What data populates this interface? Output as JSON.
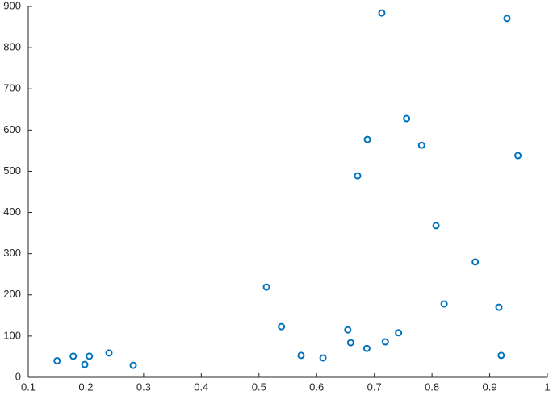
{
  "chart_data": {
    "type": "scatter",
    "x": [
      0.15,
      0.178,
      0.198,
      0.206,
      0.24,
      0.282,
      0.513,
      0.539,
      0.573,
      0.611,
      0.654,
      0.659,
      0.687,
      0.671,
      0.688,
      0.713,
      0.719,
      0.742,
      0.756,
      0.782,
      0.807,
      0.821,
      0.875,
      0.916,
      0.92,
      0.93,
      0.949
    ],
    "values": [
      40,
      51,
      31,
      51,
      59,
      29,
      219,
      123,
      53,
      47,
      115,
      84,
      70,
      489,
      577,
      884,
      86,
      108,
      628,
      563,
      368,
      178,
      280,
      170,
      53,
      871,
      538
    ],
    "color": "#0072bd",
    "xlim": [
      0.1,
      1
    ],
    "xticks": [
      0.1,
      0.2,
      0.3,
      0.4,
      0.5,
      0.6,
      0.7,
      0.8,
      0.9,
      1
    ],
    "ylim": [
      0,
      900
    ],
    "yticks": [
      0,
      100,
      200,
      300,
      400,
      500,
      600,
      700,
      800,
      900
    ],
    "grid": false
  }
}
